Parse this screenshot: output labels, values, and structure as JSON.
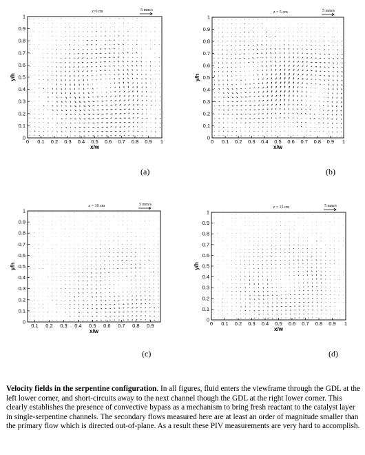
{
  "chart_data": [
    {
      "type": "vector-field",
      "panel_label": "(a)",
      "z_label": "z=1cm",
      "scale_label": "5 mm/s",
      "xlabel": "x/w",
      "ylabel": "y/h",
      "xlim": [
        0,
        1
      ],
      "ylim": [
        0,
        1
      ],
      "x_ticks": [
        "0",
        "0.1",
        "0.2",
        "0.3",
        "0.4",
        "0.5",
        "0.6",
        "0.7",
        "0.8",
        "0.9",
        "1"
      ],
      "y_ticks": [
        "0",
        "0.1",
        "0.2",
        "0.3",
        "0.4",
        "0.5",
        "0.6",
        "0.7",
        "0.8",
        "0.9",
        "1"
      ],
      "vortex_centers": [
        [
          0.55,
          0.42
        ]
      ],
      "grid": false
    },
    {
      "type": "vector-field",
      "panel_label": "(b)",
      "z_label": "z = 5 cm",
      "scale_label": "5 mm/s",
      "xlabel": "x/w",
      "ylabel": "y/h",
      "xlim": [
        0,
        1
      ],
      "ylim": [
        0,
        1
      ],
      "x_ticks": [
        "0",
        "0.1",
        "0.2",
        "0.3",
        "0.4",
        "0.5",
        "0.6",
        "0.7",
        "0.8",
        "0.9",
        "1"
      ],
      "y_ticks": [
        "0",
        "0.1",
        "0.2",
        "0.3",
        "0.4",
        "0.5",
        "0.6",
        "0.7",
        "0.8",
        "0.9",
        "1"
      ],
      "vortex_centers": [
        [
          0.3,
          0.5
        ],
        [
          0.78,
          0.4
        ]
      ],
      "grid": false
    },
    {
      "type": "vector-field",
      "panel_label": "(c)",
      "z_label": "z = 10 cm",
      "scale_label": "5 mm/s",
      "xlabel": "x/w",
      "ylabel": "y/h",
      "xlim": [
        0.05,
        0.97
      ],
      "ylim": [
        0,
        1
      ],
      "x_ticks": [
        "0.1",
        "0.2",
        "0.3",
        "0.4",
        "0.5",
        "0.6",
        "0.7",
        "0.8",
        "0.9"
      ],
      "y_ticks": [
        "0",
        "0.1",
        "0.2",
        "0.3",
        "0.4",
        "0.5",
        "0.6",
        "0.7",
        "0.8",
        "0.9",
        "1"
      ],
      "vortex_centers": [
        [
          0.7,
          0.3
        ]
      ],
      "grid": false
    },
    {
      "type": "vector-field",
      "panel_label": "(d)",
      "z_label": "z = 15 cm",
      "scale_label": "5 mm/s",
      "xlabel": "x/w",
      "ylabel": "y/h",
      "xlim": [
        0,
        1
      ],
      "ylim": [
        0,
        1
      ],
      "x_ticks": [
        "0",
        "0.1",
        "0.2",
        "0.3",
        "0.4",
        "0.5",
        "0.6",
        "0.7",
        "0.8",
        "0.9",
        "1"
      ],
      "y_ticks": [
        "0",
        "0.1",
        "0.2",
        "0.3",
        "0.4",
        "0.5",
        "0.6",
        "0.7",
        "0.8",
        "0.9",
        "1"
      ],
      "vortex_centers": [
        [
          0.55,
          0.35
        ]
      ],
      "grid": false
    }
  ],
  "caption": {
    "title": "Velocity fields in the serpentine configuration",
    "body": ".  In all figures, fluid enters the viewframe through the GDL at the left lower corner, and short-circuits away to the next channel though the GDL at the right lower corner.  This clearly establishes the presence of convective bypass as a mechanism to bring fresh reactant to the catalyst layer in single-serpentine channels.  The secondary flows measured here are at least an order of magnitude smaller than the primary flow which is directed out-of-plane.  As a result these PIV measurements are very hard to accomplish."
  }
}
